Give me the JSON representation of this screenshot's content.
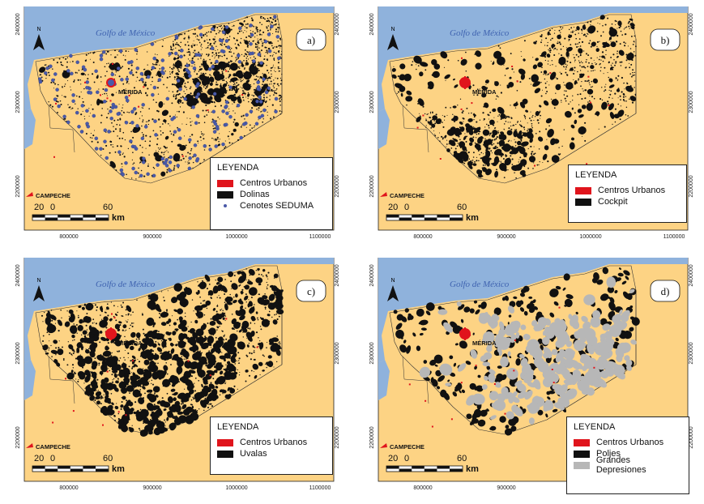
{
  "axes": {
    "x_ticks": [
      "800000",
      "900000",
      "1000000",
      "1100000"
    ],
    "y_ticks": [
      "2400000",
      "2300000",
      "2200000"
    ]
  },
  "map_text": {
    "gulf": "Golfo de México",
    "merida": "MÉRIDA",
    "campeche": "CAMPECHE",
    "north": "N",
    "scale_numbers": [
      "20",
      "0",
      "60"
    ],
    "scale_unit": "km"
  },
  "colors": {
    "sea": "#8fb2dc",
    "land": "#fdd384",
    "urban": "#e0141c",
    "feature": "#111111",
    "cenote": "#4a5aa8",
    "depression": "#b7b7b7"
  },
  "panels": [
    {
      "label": "a)",
      "legend_title": "LEYENDA",
      "legend_items": [
        {
          "label": "Centros Urbanos",
          "symbol": "urban"
        },
        {
          "label": "Dolinas",
          "symbol": "feature"
        },
        {
          "label": "Cenotes SEDUMA",
          "symbol": "cenote"
        }
      ]
    },
    {
      "label": "b)",
      "legend_title": "LEYENDA",
      "legend_items": [
        {
          "label": "Centros Urbanos",
          "symbol": "urban"
        },
        {
          "label": "Cockpit",
          "symbol": "feature"
        }
      ]
    },
    {
      "label": "c)",
      "legend_title": "LEYENDA",
      "legend_items": [
        {
          "label": "Centros Urbanos",
          "symbol": "urban"
        },
        {
          "label": "Uvalas",
          "symbol": "feature"
        }
      ]
    },
    {
      "label": "d)",
      "legend_title": "LEYENDA",
      "legend_items": [
        {
          "label": "Centros Urbanos",
          "symbol": "urban"
        },
        {
          "label": "Poljes",
          "symbol": "feature"
        },
        {
          "label": "Grandes Depresiones",
          "symbol": "depression"
        }
      ]
    }
  ]
}
